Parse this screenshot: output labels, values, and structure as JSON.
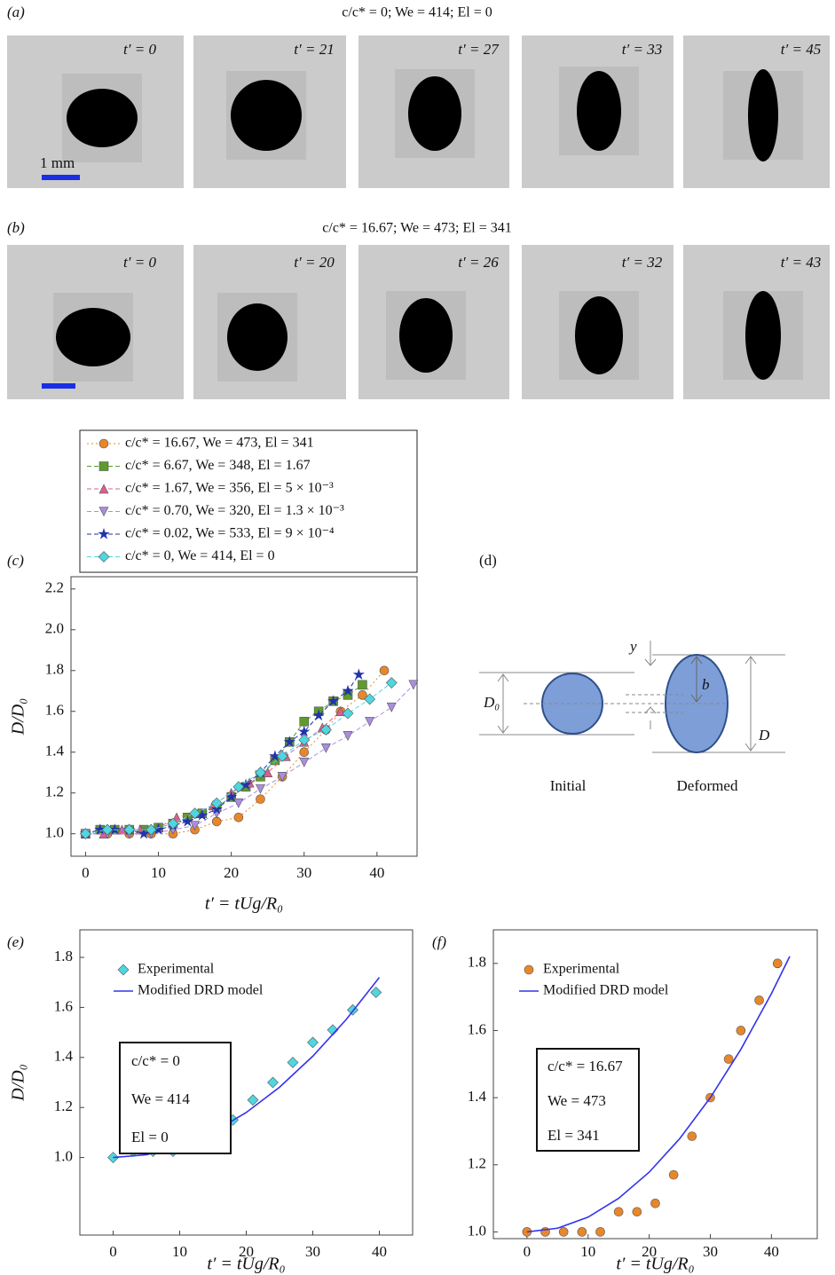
{
  "photos": [
    {
      "label": "(a)",
      "caption": "c/c* = 0; We = 414; El = 0",
      "frames": [
        "t′ = 0",
        "t′ = 21",
        "t′ = 27",
        "t′ = 33",
        "t′ = 45"
      ],
      "scale_label": "1 mm"
    },
    {
      "label": "(b)",
      "caption": "c/c* = 16.67; We = 473; El = 341",
      "frames": [
        "t′ = 0",
        "t′ = 20",
        "t′ = 26",
        "t′ = 32",
        "t′ = 43"
      ]
    }
  ],
  "diagram": {
    "label": "(d)",
    "d0": "D₀",
    "y": "y",
    "b": "b",
    "d": "D",
    "initial": "Initial",
    "deformed": "Deformed"
  },
  "chart_data": [
    {
      "type": "line",
      "label": "(c)",
      "xlabel": "t′ = tUg/R₀",
      "ylabel": "D/D₀",
      "legend": "above",
      "xlim": [
        -2,
        45.5
      ],
      "ylim": [
        0.89,
        2.26
      ],
      "xticks": [
        0,
        10,
        20,
        30,
        40
      ],
      "yticks": [
        {
          "value": 1.0,
          "label": "1.0"
        },
        1.2,
        1.4,
        1.6,
        1.8,
        {
          "value": 2.0,
          "label": "2.0"
        },
        2.2
      ],
      "series": [
        {
          "name": "c/c* = 16.67, We = 473, El = 341",
          "color": "#e8872a",
          "marker": "circle",
          "line": "dotted",
          "x": [
            0,
            3,
            6,
            9,
            12,
            15,
            18,
            21,
            24,
            27,
            30,
            33,
            35,
            38,
            41
          ],
          "values": [
            1.0,
            1.0,
            1.0,
            1.0,
            1.0,
            1.02,
            1.06,
            1.08,
            1.17,
            1.28,
            1.4,
            1.51,
            1.6,
            1.68,
            1.8
          ]
        },
        {
          "name": "c/c* = 6.67, We = 348, El = 1.67",
          "color": "#5e9a2e",
          "marker": "square",
          "line": "dashed",
          "x": [
            0,
            2,
            4,
            6,
            8,
            10,
            12,
            14,
            16,
            18,
            20,
            22,
            24,
            26,
            28,
            30,
            32,
            34,
            36,
            38
          ],
          "values": [
            1.0,
            1.02,
            1.02,
            1.02,
            1.02,
            1.03,
            1.05,
            1.08,
            1.1,
            1.13,
            1.18,
            1.23,
            1.28,
            1.36,
            1.45,
            1.55,
            1.6,
            1.65,
            1.68,
            1.73
          ]
        },
        {
          "name": "c/c* = 1.67, We = 356, El = 5 × 10⁻³",
          "color": "#d9608f",
          "marker": "triangle",
          "line": "dashed",
          "x": [
            0,
            2.5,
            5,
            7.5,
            10,
            12.5,
            15,
            17.5,
            20,
            22.5,
            25,
            27.5,
            30,
            32.5,
            35
          ],
          "values": [
            1.0,
            1.0,
            1.02,
            1.02,
            1.03,
            1.08,
            1.1,
            1.14,
            1.2,
            1.25,
            1.3,
            1.38,
            1.45,
            1.52,
            1.6
          ]
        },
        {
          "name": "c/c* = 0.70, We = 320, El = 1.3 × 10⁻³",
          "color": "#a98ee0",
          "marker": "triangle-down",
          "line": "dashed",
          "x": [
            0,
            3,
            6,
            9,
            12,
            15,
            18,
            21,
            24,
            27,
            30,
            33,
            36,
            39,
            42,
            45
          ],
          "values": [
            1.0,
            1.0,
            1.0,
            1.0,
            1.02,
            1.04,
            1.1,
            1.15,
            1.22,
            1.28,
            1.35,
            1.42,
            1.48,
            1.55,
            1.62,
            1.73
          ]
        },
        {
          "name": "c/c* = 0.02, We = 533, El = 9 × 10⁻⁴",
          "color": "#2233aa",
          "marker": "star",
          "line": "dashed",
          "x": [
            0,
            2,
            4,
            6,
            8,
            10,
            12,
            14,
            16,
            18,
            20,
            22,
            24,
            26,
            28,
            30,
            32,
            34,
            36,
            37.5
          ],
          "values": [
            1.0,
            1.02,
            1.02,
            1.02,
            1.0,
            1.02,
            1.04,
            1.06,
            1.09,
            1.12,
            1.18,
            1.24,
            1.3,
            1.38,
            1.45,
            1.5,
            1.58,
            1.65,
            1.7,
            1.78
          ]
        },
        {
          "name": "c/c* = 0, We = 414, El = 0",
          "color": "#4fd6e0",
          "marker": "diamond",
          "line": "dashed",
          "x": [
            0,
            3,
            6,
            9,
            12,
            15,
            18,
            21,
            24,
            27,
            30,
            33,
            36,
            39,
            42
          ],
          "values": [
            1.0,
            1.02,
            1.02,
            1.02,
            1.05,
            1.1,
            1.15,
            1.23,
            1.3,
            1.38,
            1.46,
            1.51,
            1.59,
            1.66,
            1.74
          ]
        }
      ]
    },
    {
      "type": "line",
      "label": "(e)",
      "xlabel": "t′ = tUg/R₀",
      "ylabel": "D/D₀",
      "legend": "upper left",
      "xlim": [
        -5,
        45
      ],
      "ylim": [
        0.69,
        1.91
      ],
      "xticks": [
        0,
        10,
        20,
        30,
        40
      ],
      "yticks": [
        {
          "value": 1.0,
          "label": "1.0"
        },
        1.2,
        1.4,
        1.6,
        1.8
      ],
      "annotations": [
        "c/c* = 0",
        "We = 414",
        "El = 0"
      ],
      "series": [
        {
          "name": "Experimental",
          "color": "#4fd6e0",
          "marker": "diamond",
          "line": "none",
          "x": [
            0,
            3,
            6,
            9,
            12,
            15,
            18,
            21,
            24,
            27,
            30,
            33,
            36,
            39.5
          ],
          "values": [
            1.0,
            1.025,
            1.025,
            1.025,
            1.05,
            1.1,
            1.15,
            1.23,
            1.3,
            1.38,
            1.46,
            1.51,
            1.59,
            1.66
          ]
        },
        {
          "name": "Modified DRD model",
          "color": "#3333ee",
          "marker": "none",
          "line": "solid",
          "x": [
            0,
            5,
            10,
            15,
            20,
            25,
            30,
            35,
            40
          ],
          "values": [
            1.0,
            1.011,
            1.045,
            1.101,
            1.18,
            1.281,
            1.405,
            1.551,
            1.72
          ]
        }
      ]
    },
    {
      "type": "line",
      "label": "(f)",
      "xlabel": "t′ = tUg/R₀",
      "legend": "upper left",
      "xlim": [
        -5.5,
        47.5
      ],
      "ylim": [
        0.98,
        1.9
      ],
      "xticks": [
        0,
        10,
        20,
        30,
        40
      ],
      "yticks": [
        {
          "value": 1.0,
          "label": "1.0"
        },
        1.2,
        1.4,
        1.6,
        1.8
      ],
      "annotations": [
        "c/c* = 16.67",
        "We = 473",
        "El = 341"
      ],
      "series": [
        {
          "name": "Experimental",
          "color": "#e8872a",
          "marker": "circle",
          "line": "none",
          "x": [
            0,
            3,
            6,
            9,
            12,
            15,
            18,
            21,
            24,
            27,
            30,
            33,
            35,
            38,
            41
          ],
          "values": [
            1.0,
            1.0,
            1.0,
            1.0,
            1.0,
            1.06,
            1.06,
            1.085,
            1.17,
            1.285,
            1.4,
            1.515,
            1.6,
            1.69,
            1.8
          ]
        },
        {
          "name": "Modified DRD model",
          "color": "#3333ee",
          "marker": "none",
          "line": "solid",
          "x": [
            0,
            5,
            10,
            15,
            20,
            25,
            30,
            35,
            40,
            43
          ],
          "values": [
            1.0,
            1.011,
            1.044,
            1.1,
            1.178,
            1.278,
            1.4,
            1.544,
            1.71,
            1.821
          ]
        }
      ]
    }
  ]
}
